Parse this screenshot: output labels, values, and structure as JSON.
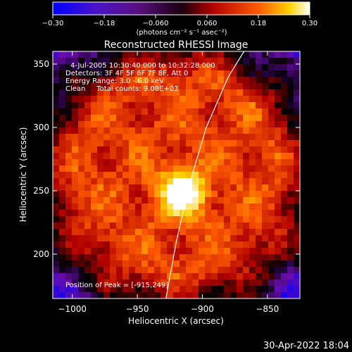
{
  "chart_data": {
    "type": "heatmap",
    "title": "Reconstructed RHESSI Image",
    "xlabel": "Heliocentric X (arcsec)",
    "ylabel": "Heliocentric Y (arcsec)",
    "xlim": [
      -1015,
      -825
    ],
    "ylim": [
      165,
      360
    ],
    "x_ticks": [
      -1000,
      -950,
      -900,
      -850
    ],
    "y_ticks": [
      200,
      250,
      300,
      350
    ],
    "x_tick_labels": [
      "−1000",
      "−950",
      "−900",
      "−850"
    ],
    "y_tick_labels": [
      "200",
      "250",
      "300",
      "350"
    ],
    "colorbar": {
      "range": [
        -0.3,
        0.3
      ],
      "ticks": [
        -0.3,
        -0.18,
        -0.06,
        0.06,
        0.18,
        0.3
      ],
      "tick_labels": [
        "−0.30",
        "−0.18",
        "−0.060",
        "0.060",
        "0.18",
        "0.30"
      ],
      "unit_label": "(photons cm⁻² s⁻¹ asec⁻²)",
      "colors": [
        "#0000ff",
        "#6a0dad",
        "#000000",
        "#b00000",
        "#ff5a00",
        "#ffd000",
        "#ffffff"
      ]
    },
    "annotations": [
      "4-Jul-2005 10:30:40.000 to 10:32:28.000",
      "Detectors: 3F 4F 5F 6F 7F 8F, Att 0",
      "Energy Range: 3.0 - 6.0 keV",
      "Clean     Total counts: 9.08E+03",
      "Position of Peak = [-915,249]"
    ],
    "peak": [
      -915,
      249
    ],
    "limb_curve": [
      [
        -928,
        165
      ],
      [
        -920,
        210
      ],
      [
        -910,
        255
      ],
      [
        -897,
        300
      ],
      [
        -880,
        340
      ],
      [
        -868,
        360
      ]
    ]
  },
  "footer": {
    "timestamp": "30-Apr-2022 18:04"
  }
}
